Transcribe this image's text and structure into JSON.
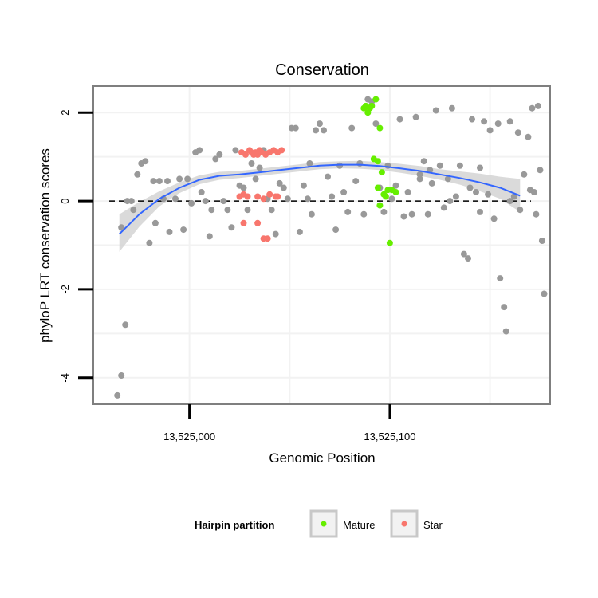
{
  "chart_data": {
    "type": "scatter",
    "title": "Conservation",
    "xlabel": "Genomic Position",
    "ylabel": "phyloP LRT conservation scores",
    "xlim": [
      13524952,
      13525180
    ],
    "ylim": [
      -4.6,
      2.6
    ],
    "x_ticks": [
      {
        "value": 13525000,
        "label": "13,525,000"
      },
      {
        "value": 13525100,
        "label": "13,525,100"
      }
    ],
    "y_ticks": [
      {
        "value": -4,
        "label": "-4"
      },
      {
        "value": -2,
        "label": "-2"
      },
      {
        "value": 0,
        "label": "0"
      },
      {
        "value": 2,
        "label": "2"
      }
    ],
    "grid": true,
    "reference_line": {
      "y": 0,
      "style": "dashed"
    },
    "legend": {
      "title": "Hairpin partition",
      "position": "bottom",
      "entries": [
        {
          "name": "Mature",
          "color": "#66ee00"
        },
        {
          "name": "Star",
          "color": "#f8766d"
        }
      ]
    },
    "colors": {
      "other": "#999999",
      "mature": "#66ee00",
      "star": "#f8766d",
      "smooth": "#3366ff",
      "band": "#d3d3d3"
    },
    "smooth": {
      "x": [
        13524965,
        13524975,
        13524985,
        13524995,
        13525005,
        13525015,
        13525025,
        13525035,
        13525045,
        13525055,
        13525065,
        13525075,
        13525085,
        13525095,
        13525105,
        13525115,
        13525125,
        13525135,
        13525145,
        13525155,
        13525165
      ],
      "y": [
        -0.75,
        -0.3,
        0.05,
        0.3,
        0.48,
        0.57,
        0.6,
        0.65,
        0.7,
        0.75,
        0.8,
        0.82,
        0.82,
        0.79,
        0.74,
        0.68,
        0.6,
        0.52,
        0.42,
        0.3,
        0.12
      ],
      "lower": [
        -1.15,
        -0.58,
        -0.12,
        0.18,
        0.38,
        0.48,
        0.52,
        0.57,
        0.62,
        0.67,
        0.72,
        0.74,
        0.73,
        0.7,
        0.64,
        0.57,
        0.48,
        0.37,
        0.22,
        0.05,
        -0.25
      ],
      "upper": [
        -0.3,
        -0.02,
        0.22,
        0.42,
        0.58,
        0.66,
        0.68,
        0.73,
        0.78,
        0.83,
        0.88,
        0.9,
        0.91,
        0.88,
        0.84,
        0.79,
        0.72,
        0.67,
        0.62,
        0.55,
        0.5
      ]
    },
    "points": {
      "other": [
        [
          13524964,
          -4.4
        ],
        [
          13524966,
          -3.95
        ],
        [
          13524968,
          -2.8
        ],
        [
          13524966,
          -0.6
        ],
        [
          13524969,
          0.0
        ],
        [
          13524971,
          0.0
        ],
        [
          13524972,
          -0.2
        ],
        [
          13524974,
          0.6
        ],
        [
          13524976,
          0.85
        ],
        [
          13524978,
          0.9
        ],
        [
          13524980,
          -0.95
        ],
        [
          13524982,
          0.45
        ],
        [
          13524983,
          -0.5
        ],
        [
          13524985,
          0.45
        ],
        [
          13524987,
          0.05
        ],
        [
          13524989,
          0.45
        ],
        [
          13524990,
          -0.7
        ],
        [
          13524993,
          0.05
        ],
        [
          13524995,
          0.5
        ],
        [
          13524997,
          -0.65
        ],
        [
          13524999,
          0.5
        ],
        [
          13525001,
          -0.05
        ],
        [
          13525003,
          1.1
        ],
        [
          13525005,
          1.15
        ],
        [
          13525006,
          0.2
        ],
        [
          13525008,
          0.0
        ],
        [
          13525010,
          -0.8
        ],
        [
          13525011,
          -0.2
        ],
        [
          13525013,
          0.95
        ],
        [
          13525015,
          1.05
        ],
        [
          13525017,
          0.0
        ],
        [
          13525019,
          -0.2
        ],
        [
          13525021,
          -0.6
        ],
        [
          13525023,
          1.15
        ],
        [
          13525025,
          0.35
        ],
        [
          13525027,
          0.3
        ],
        [
          13525029,
          -0.2
        ],
        [
          13525031,
          0.85
        ],
        [
          13525033,
          0.5
        ],
        [
          13525035,
          1.1
        ],
        [
          13525037,
          1.15
        ],
        [
          13525039,
          0.05
        ],
        [
          13525041,
          -0.2
        ],
        [
          13525043,
          -0.75
        ],
        [
          13525045,
          0.4
        ],
        [
          13525047,
          0.3
        ],
        [
          13525049,
          0.05
        ],
        [
          13525051,
          1.65
        ],
        [
          13525053,
          1.65
        ],
        [
          13525055,
          -0.7
        ],
        [
          13525057,
          0.35
        ],
        [
          13525059,
          0.05
        ],
        [
          13525061,
          -0.3
        ],
        [
          13525063,
          1.6
        ],
        [
          13525065,
          1.75
        ],
        [
          13525067,
          1.6
        ],
        [
          13525069,
          0.55
        ],
        [
          13525071,
          0.1
        ],
        [
          13525073,
          -0.65
        ],
        [
          13525075,
          0.8
        ],
        [
          13525077,
          0.2
        ],
        [
          13525079,
          -0.25
        ],
        [
          13525081,
          1.65
        ],
        [
          13525083,
          0.45
        ],
        [
          13525085,
          0.85
        ],
        [
          13525087,
          -0.3
        ],
        [
          13525089,
          2.3
        ],
        [
          13525091,
          2.25
        ],
        [
          13525093,
          1.75
        ],
        [
          13525095,
          0.3
        ],
        [
          13525097,
          -0.25
        ],
        [
          13525099,
          0.8
        ],
        [
          13525101,
          0.05
        ],
        [
          13525103,
          0.35
        ],
        [
          13525105,
          1.85
        ],
        [
          13525107,
          -0.35
        ],
        [
          13525109,
          0.2
        ],
        [
          13525111,
          -0.3
        ],
        [
          13525113,
          1.9
        ],
        [
          13525115,
          0.5
        ],
        [
          13525117,
          0.9
        ],
        [
          13525119,
          -0.3
        ],
        [
          13525121,
          0.4
        ],
        [
          13525123,
          2.05
        ],
        [
          13525125,
          0.8
        ],
        [
          13525127,
          -0.15
        ],
        [
          13525129,
          0.5
        ],
        [
          13525131,
          2.1
        ],
        [
          13525133,
          0.1
        ],
        [
          13525135,
          0.8
        ],
        [
          13525137,
          -1.2
        ],
        [
          13525139,
          -1.3
        ],
        [
          13525141,
          1.85
        ],
        [
          13525143,
          0.2
        ],
        [
          13525145,
          0.75
        ],
        [
          13525147,
          1.8
        ],
        [
          13525149,
          0.15
        ],
        [
          13525150,
          1.6
        ],
        [
          13525152,
          -0.4
        ],
        [
          13525154,
          1.75
        ],
        [
          13525155,
          -1.75
        ],
        [
          13525157,
          -2.4
        ],
        [
          13525158,
          -2.95
        ],
        [
          13525160,
          1.8
        ],
        [
          13525162,
          0.1
        ],
        [
          13525164,
          1.55
        ],
        [
          13525165,
          -0.2
        ],
        [
          13525167,
          0.6
        ],
        [
          13525169,
          1.45
        ],
        [
          13525170,
          0.25
        ],
        [
          13525171,
          2.1
        ],
        [
          13525172,
          0.2
        ],
        [
          13525173,
          -0.3
        ],
        [
          13525174,
          2.15
        ],
        [
          13525175,
          0.7
        ],
        [
          13525176,
          -0.9
        ],
        [
          13525177,
          -2.1
        ],
        [
          13525035,
          0.75
        ],
        [
          13525060,
          0.85
        ],
        [
          13525115,
          0.6
        ],
        [
          13525120,
          0.7
        ],
        [
          13525130,
          0.0
        ],
        [
          13525140,
          0.3
        ],
        [
          13525145,
          -0.25
        ],
        [
          13525160,
          0.0
        ]
      ],
      "mature": [
        [
          13525087,
          2.1
        ],
        [
          13525088,
          2.15
        ],
        [
          13525089,
          2.0
        ],
        [
          13525090,
          2.1
        ],
        [
          13525091,
          2.15
        ],
        [
          13525093,
          2.3
        ],
        [
          13525095,
          1.65
        ],
        [
          13525092,
          0.95
        ],
        [
          13525094,
          0.9
        ],
        [
          13525096,
          0.65
        ],
        [
          13525094,
          0.3
        ],
        [
          13525097,
          0.15
        ],
        [
          13525099,
          0.25
        ],
        [
          13525101,
          0.25
        ],
        [
          13525103,
          0.2
        ],
        [
          13525095,
          -0.1
        ],
        [
          13525098,
          0.1
        ],
        [
          13525100,
          -0.95
        ]
      ],
      "star": [
        [
          13525025,
          0.1
        ],
        [
          13525027,
          0.15
        ],
        [
          13525029,
          0.1
        ],
        [
          13525034,
          0.1
        ],
        [
          13525037,
          0.05
        ],
        [
          13525040,
          0.15
        ],
        [
          13525043,
          0.1
        ],
        [
          13525044,
          0.1
        ],
        [
          13525027,
          -0.5
        ],
        [
          13525034,
          -0.5
        ],
        [
          13525037,
          -0.85
        ],
        [
          13525039,
          -0.85
        ],
        [
          13525026,
          1.1
        ],
        [
          13525028,
          1.05
        ],
        [
          13525030,
          1.15
        ],
        [
          13525031,
          1.1
        ],
        [
          13525032,
          1.05
        ],
        [
          13525033,
          1.1
        ],
        [
          13525034,
          1.05
        ],
        [
          13525035,
          1.15
        ],
        [
          13525036,
          1.1
        ],
        [
          13525038,
          1.05
        ],
        [
          13525040,
          1.1
        ],
        [
          13525042,
          1.15
        ],
        [
          13525044,
          1.1
        ],
        [
          13525046,
          1.15
        ]
      ]
    }
  }
}
